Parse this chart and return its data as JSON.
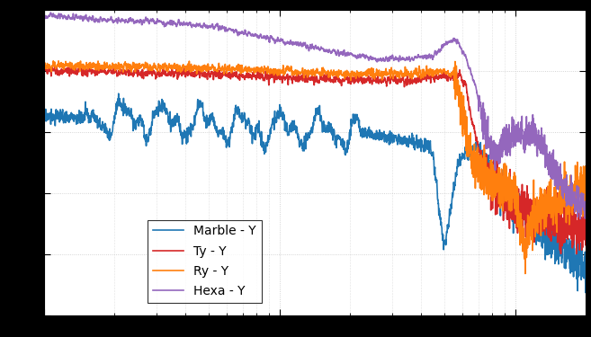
{
  "title": "",
  "xlabel": "",
  "ylabel": "",
  "legend_entries": [
    "Marble - Y",
    "Ty - Y",
    "Ry - Y",
    "Hexa - Y"
  ],
  "colors": [
    "#1f77b4",
    "#d62728",
    "#ff7f0e",
    "#9467bd"
  ],
  "linewidth": 1.2,
  "background_color": "#ffffff",
  "grid_color": "#c8c8c8",
  "figsize": [
    6.57,
    3.75
  ],
  "dpi": 100,
  "freq_min": 1,
  "freq_max": 200,
  "amp_min": -160,
  "amp_max": -60
}
